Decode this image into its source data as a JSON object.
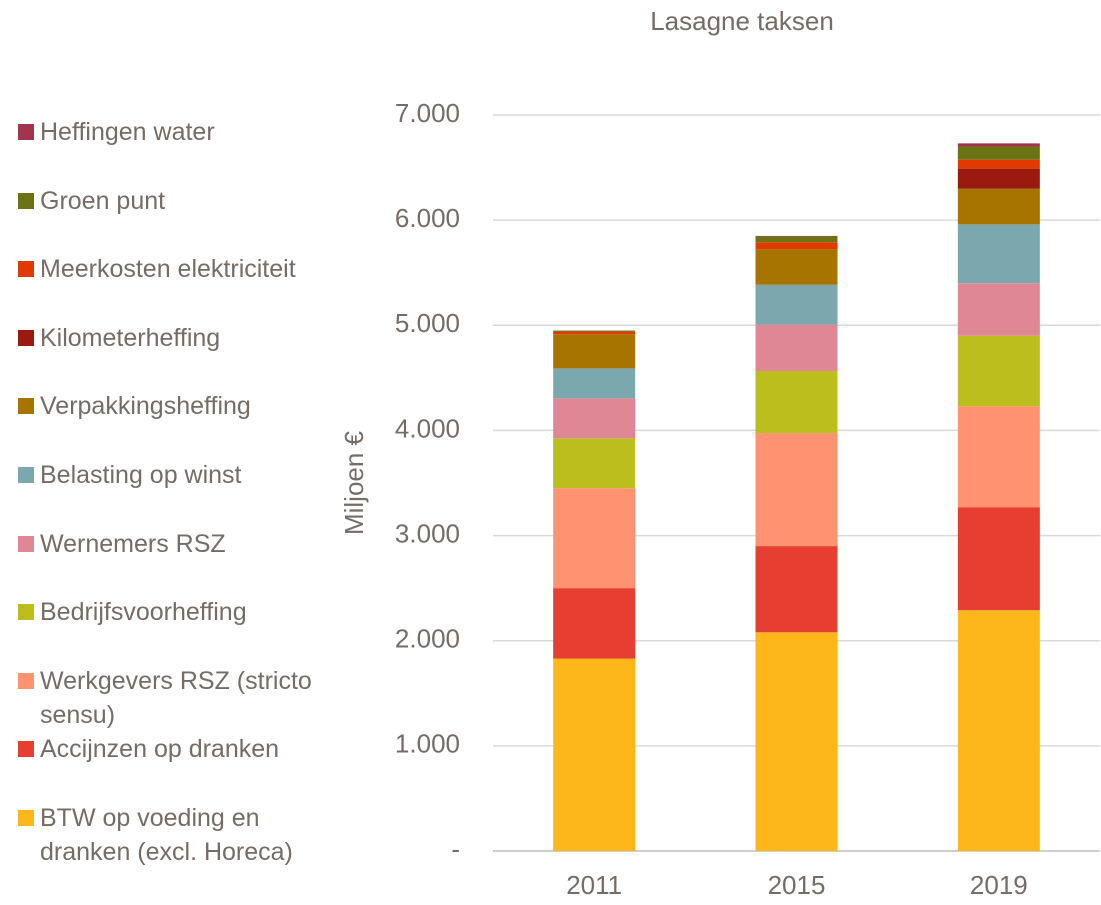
{
  "chart_data": {
    "type": "stacked_bar",
    "title": "Lasagne taksen",
    "y_label": "Miljoen €",
    "categories": [
      "2011",
      "2015",
      "2019"
    ],
    "series": [
      {
        "name": "BTW op voeding en dranken (excl. Horeca)",
        "color": "#fdb71a",
        "values": [
          1830,
          2080,
          2290
        ]
      },
      {
        "name": "Accijnzen op dranken",
        "color": "#e63e30",
        "values": [
          670,
          820,
          980
        ]
      },
      {
        "name": "Werkgevers RSZ (stricto sensu)",
        "color": "#ff9270",
        "values": [
          950,
          1075,
          960
        ]
      },
      {
        "name": "Bedrijfsvoorheffing",
        "color": "#bbbe1c",
        "values": [
          475,
          590,
          670
        ]
      },
      {
        "name": "Wernemers RSZ",
        "color": "#e08795",
        "values": [
          380,
          440,
          500
        ]
      },
      {
        "name": "Belasting op winst",
        "color": "#7ba7ae",
        "values": [
          285,
          380,
          560
        ]
      },
      {
        "name": "Verpakkingsheffing",
        "color": "#a87400",
        "values": [
          325,
          340,
          340
        ]
      },
      {
        "name": "Kilometerheffing",
        "color": "#9a1a0f",
        "values": [
          0,
          0,
          190
        ]
      },
      {
        "name": "Meerkosten elektriciteit",
        "color": "#e03a00",
        "values": [
          25,
          65,
          85
        ]
      },
      {
        "name": "Groen punt",
        "color": "#6b7314",
        "values": [
          10,
          55,
          125
        ]
      },
      {
        "name": "Heffingen water",
        "color": "#a2344e",
        "values": [
          0,
          5,
          30
        ]
      }
    ],
    "ylim": [
      0,
      7000
    ],
    "yticks": [
      {
        "value": 0,
        "label": "-"
      },
      {
        "value": 1000,
        "label": "1.000"
      },
      {
        "value": 2000,
        "label": "2.000"
      },
      {
        "value": 3000,
        "label": "3.000"
      },
      {
        "value": 4000,
        "label": "4.000"
      },
      {
        "value": 5000,
        "label": "5.000"
      },
      {
        "value": 6000,
        "label": "6.000"
      },
      {
        "value": 7000,
        "label": "7.000"
      }
    ],
    "grid": true,
    "legend": "left"
  }
}
